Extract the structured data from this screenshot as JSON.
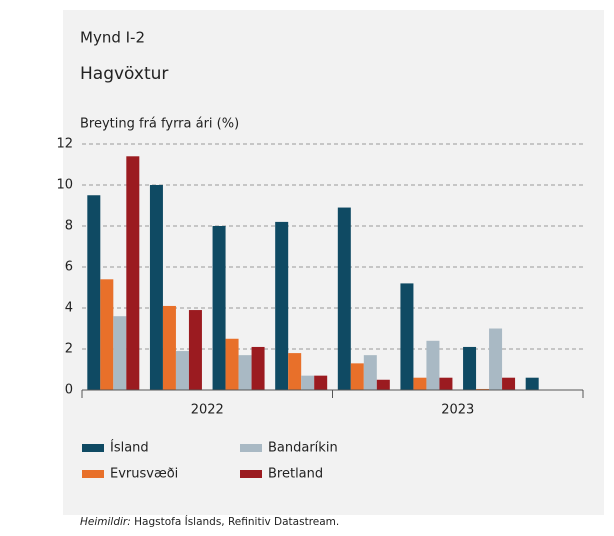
{
  "chart_data": {
    "type": "bar",
    "figure_label": "Mynd I-2",
    "title": "Hagvöxtur",
    "y_axis_title": "Breyting frá fyrra ári (%)",
    "categories": [
      null,
      null,
      null,
      null,
      null,
      null,
      null,
      null
    ],
    "group_labels": [
      "2022",
      "2023"
    ],
    "series": [
      {
        "name": "Ísland",
        "color": "#0f4a63",
        "values": [
          9.5,
          10.0,
          8.0,
          8.2,
          8.9,
          5.2,
          2.1,
          0.6
        ]
      },
      {
        "name": "Evrusvæði",
        "color": "#e8702a",
        "values": [
          5.4,
          4.1,
          2.5,
          1.8,
          1.3,
          0.6,
          0.05,
          null
        ]
      },
      {
        "name": "Bandaríkin",
        "color": "#a9b9c4",
        "values": [
          3.6,
          1.9,
          1.7,
          0.7,
          1.7,
          2.4,
          3.0,
          null
        ]
      },
      {
        "name": "Bretland",
        "color": "#9b1b20",
        "values": [
          11.4,
          3.9,
          2.1,
          0.7,
          0.5,
          0.6,
          0.6,
          null
        ]
      }
    ],
    "ylim": [
      0,
      12
    ],
    "yticks": [
      0,
      2,
      4,
      6,
      8,
      10,
      12
    ],
    "grid": true,
    "source_label": "Heimildir:",
    "source_text": "Hagstofa Íslands, Refinitiv Datastream."
  }
}
